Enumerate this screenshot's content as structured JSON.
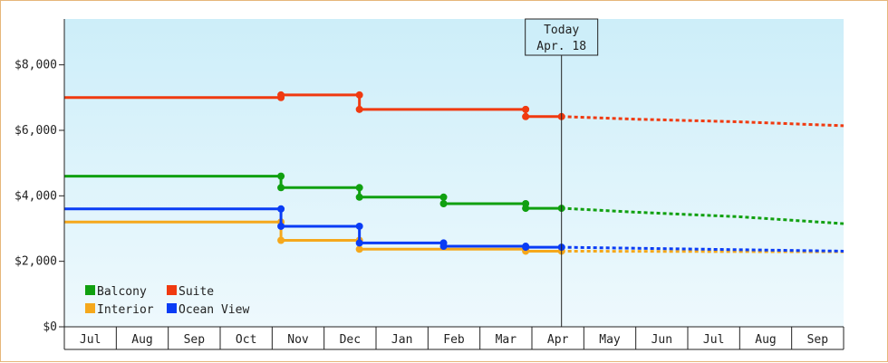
{
  "chart_data": {
    "type": "line",
    "step": true,
    "title": "",
    "xlabel": "",
    "ylabel": "",
    "x_labels": [
      "Jul",
      "Aug",
      "Sep",
      "Oct",
      "Nov",
      "Dec",
      "Jan",
      "Feb",
      "Mar",
      "Apr",
      "May",
      "Jun",
      "Jul",
      "Aug",
      "Sep"
    ],
    "x_range_months": [
      0,
      15
    ],
    "ylim": [
      0,
      9400
    ],
    "y_ticks": [
      0,
      2000,
      4000,
      6000,
      8000
    ],
    "y_tick_labels": [
      "$0",
      "$2,000",
      "$4,000",
      "$6,000",
      "$8,000"
    ],
    "grid": false,
    "legend": {
      "placement": "bottom-left"
    },
    "today_marker": {
      "line1": "Today",
      "line2": "Apr. 18",
      "x": 9.57
    },
    "series": [
      {
        "name": "Balcony",
        "color": "#10a010",
        "points": [
          [
            0,
            4600
          ],
          [
            4.17,
            4600
          ],
          [
            4.17,
            4250
          ],
          [
            5.68,
            4250
          ],
          [
            5.68,
            3960
          ],
          [
            7.3,
            3960
          ],
          [
            7.3,
            3760
          ],
          [
            8.88,
            3760
          ],
          [
            8.88,
            3620
          ],
          [
            9.57,
            3620
          ]
        ],
        "forecast": [
          [
            9.57,
            3620
          ],
          [
            11,
            3500
          ],
          [
            13,
            3360
          ],
          [
            15,
            3150
          ]
        ]
      },
      {
        "name": "Suite",
        "color": "#f03a10",
        "points": [
          [
            0,
            7000
          ],
          [
            4.17,
            7000
          ],
          [
            4.17,
            7080
          ],
          [
            5.68,
            7080
          ],
          [
            5.68,
            6640
          ],
          [
            8.88,
            6640
          ],
          [
            8.88,
            6420
          ],
          [
            9.57,
            6420
          ]
        ],
        "forecast": [
          [
            9.57,
            6420
          ],
          [
            11,
            6340
          ],
          [
            13,
            6260
          ],
          [
            15,
            6140
          ]
        ]
      },
      {
        "name": "Interior",
        "color": "#f5a81c",
        "points": [
          [
            0,
            3200
          ],
          [
            4.17,
            3200
          ],
          [
            4.17,
            2640
          ],
          [
            5.68,
            2640
          ],
          [
            5.68,
            2370
          ],
          [
            8.88,
            2370
          ],
          [
            8.88,
            2310
          ],
          [
            9.57,
            2310
          ]
        ],
        "forecast": [
          [
            9.57,
            2310
          ],
          [
            15,
            2290
          ]
        ]
      },
      {
        "name": "Ocean View",
        "color": "#0a3cf5",
        "points": [
          [
            0,
            3600
          ],
          [
            4.17,
            3600
          ],
          [
            4.17,
            3070
          ],
          [
            5.68,
            3070
          ],
          [
            5.68,
            2560
          ],
          [
            7.3,
            2560
          ],
          [
            7.3,
            2460
          ],
          [
            8.88,
            2460
          ],
          [
            8.88,
            2430
          ],
          [
            9.57,
            2430
          ]
        ],
        "forecast": [
          [
            9.57,
            2430
          ],
          [
            15,
            2310
          ]
        ]
      }
    ]
  }
}
